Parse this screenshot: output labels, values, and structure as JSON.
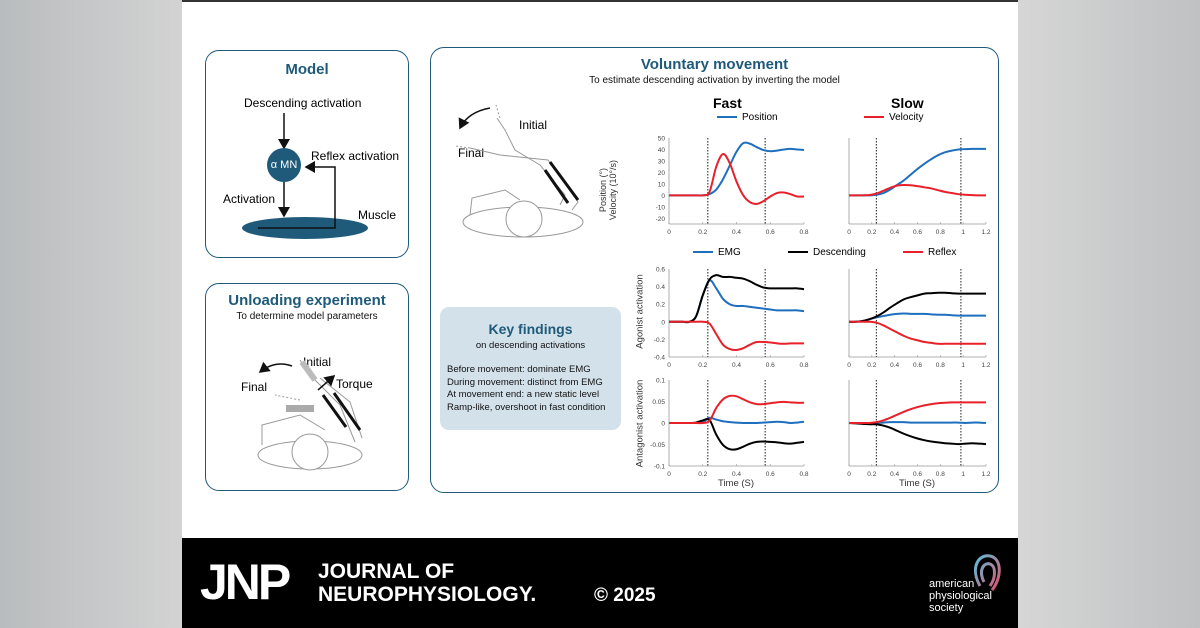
{
  "model": {
    "title": "Model",
    "descending": "Descending activation",
    "mn": "α MN",
    "reflex": "Reflex activation",
    "activation": "Activation",
    "muscle": "Muscle"
  },
  "unloading": {
    "title": "Unloading experiment",
    "subtitle": "To determine model parameters",
    "initial": "Initial",
    "final": "Final",
    "torque": "Torque"
  },
  "voluntary": {
    "title": "Voluntary movement",
    "subtitle": "To estimate descending activation by inverting the model",
    "initial": "Initial",
    "final": "Final",
    "fast": "Fast",
    "slow": "Slow"
  },
  "key_findings": {
    "title": "Key findings",
    "subtitle": "on descending activations",
    "items": [
      "Before movement: dominate EMG",
      "During movement: distinct from EMG",
      "At movement end: a new static level",
      "Ramp-like, overshoot in fast condition"
    ]
  },
  "footer": {
    "logo": "JNP",
    "journal_line1": "JOURNAL OF",
    "journal_line2": "NEUROPHYSIOLOGY.",
    "copyright": "© 2025",
    "society": [
      "american",
      "physiological",
      "society"
    ]
  },
  "colors": {
    "accent": "#1f5a7a",
    "position": "#1f6fbf",
    "velocity": "#e8202a",
    "emg": "#1f6fbf",
    "descending": "#000000",
    "reflex": "#e8202a",
    "findings_bg": "#d3e1ea"
  },
  "chart_data": [
    {
      "type": "line",
      "title": "Fast",
      "ylabel": "Position (°)\nVelocity (10°/s)",
      "xlabel": "",
      "xlim": [
        0,
        0.8
      ],
      "ylim": [
        -25,
        50
      ],
      "xticks": [
        "0",
        "0.2",
        "0.4",
        "0.6",
        "0.8"
      ],
      "xtick_values": [
        0,
        0.2,
        0.4,
        0.6,
        0.8
      ],
      "yticks": [
        "50",
        "40",
        "30",
        "20",
        "10",
        "0",
        "-10",
        "-20"
      ],
      "ytick_values": [
        50,
        40,
        30,
        20,
        10,
        0,
        -10,
        -20
      ],
      "vlines": [
        0.23,
        0.57
      ],
      "x": [
        0,
        0.04,
        0.08,
        0.12,
        0.16,
        0.2,
        0.24,
        0.28,
        0.32,
        0.36,
        0.4,
        0.44,
        0.48,
        0.52,
        0.56,
        0.6,
        0.64,
        0.68,
        0.72,
        0.76,
        0.8
      ],
      "series": [
        {
          "name": "Position",
          "color": "#1f6fbf",
          "values": [
            0,
            0,
            0,
            0,
            0,
            0,
            1,
            5,
            14,
            26,
            38,
            45.5,
            45,
            42,
            39.5,
            38.5,
            39,
            40,
            40.5,
            40,
            39.5
          ]
        },
        {
          "name": "Velocity",
          "color": "#e8202a",
          "values": [
            0,
            0,
            0,
            0,
            0,
            0,
            3,
            25,
            36,
            28,
            12,
            0,
            -6,
            -7.5,
            -5,
            -1,
            2,
            2.5,
            1,
            -1,
            -1
          ]
        }
      ]
    },
    {
      "type": "line",
      "title": "Slow",
      "xlim": [
        0,
        1.2
      ],
      "ylim": [
        -25,
        50
      ],
      "xticks": [
        "0",
        "0.2",
        "0.4",
        "0.6",
        "0.8",
        "1",
        "1.2"
      ],
      "xtick_values": [
        0,
        0.2,
        0.4,
        0.6,
        0.8,
        1,
        1.2
      ],
      "vlines": [
        0.24,
        0.98
      ],
      "x": [
        0,
        0.06,
        0.12,
        0.18,
        0.24,
        0.3,
        0.36,
        0.42,
        0.48,
        0.54,
        0.6,
        0.66,
        0.72,
        0.78,
        0.84,
        0.9,
        0.96,
        1.02,
        1.08,
        1.14,
        1.2
      ],
      "series": [
        {
          "name": "Position",
          "color": "#1f6fbf",
          "values": [
            0,
            0,
            0,
            0,
            0.5,
            2,
            5,
            9,
            13,
            18,
            23,
            27.5,
            31.5,
            35,
            37.5,
            39,
            40,
            40.3,
            40.5,
            40.5,
            40.5
          ]
        },
        {
          "name": "Velocity",
          "color": "#e8202a",
          "values": [
            0,
            0,
            0,
            0.3,
            1.5,
            4,
            6.5,
            8.5,
            9,
            8.8,
            8,
            7,
            6,
            4.5,
            3,
            2,
            1,
            0.5,
            0.2,
            0,
            0
          ]
        }
      ]
    },
    {
      "type": "line",
      "ylabel": "Agonist activation",
      "xlim": [
        0,
        0.8
      ],
      "ylim": [
        -0.4,
        0.6
      ],
      "xticks": [
        "0",
        "0.2",
        "0.4",
        "0.6",
        "0.8"
      ],
      "xtick_values": [
        0,
        0.2,
        0.4,
        0.6,
        0.8
      ],
      "yticks": [
        "0.6",
        "0.4",
        "0.2",
        "0",
        "-0.2",
        "-0.4"
      ],
      "ytick_values": [
        0.6,
        0.4,
        0.2,
        0,
        -0.2,
        -0.4
      ],
      "vlines": [
        0.23,
        0.57
      ],
      "x": [
        0,
        0.04,
        0.08,
        0.12,
        0.16,
        0.2,
        0.24,
        0.28,
        0.32,
        0.36,
        0.4,
        0.44,
        0.48,
        0.52,
        0.56,
        0.6,
        0.64,
        0.68,
        0.72,
        0.76,
        0.8
      ],
      "series": [
        {
          "name": "EMG",
          "color": "#1f6fbf",
          "values": [
            0,
            0,
            0,
            0,
            0.06,
            0.3,
            0.47,
            0.38,
            0.26,
            0.2,
            0.18,
            0.18,
            0.17,
            0.16,
            0.15,
            0.14,
            0.13,
            0.13,
            0.13,
            0.13,
            0.12
          ]
        },
        {
          "name": "Descending",
          "color": "#000000",
          "values": [
            0,
            0,
            0,
            0,
            0.06,
            0.3,
            0.48,
            0.53,
            0.51,
            0.51,
            0.5,
            0.49,
            0.46,
            0.42,
            0.39,
            0.38,
            0.38,
            0.38,
            0.38,
            0.38,
            0.37
          ]
        },
        {
          "name": "Reflex",
          "color": "#e8202a",
          "values": [
            0,
            0,
            0,
            0,
            0,
            0,
            -0.02,
            -0.14,
            -0.26,
            -0.31,
            -0.32,
            -0.3,
            -0.26,
            -0.23,
            -0.23,
            -0.235,
            -0.245,
            -0.25,
            -0.245,
            -0.245,
            -0.245
          ]
        }
      ]
    },
    {
      "type": "line",
      "xlim": [
        0,
        1.2
      ],
      "ylim": [
        -0.4,
        0.6
      ],
      "xticks": [
        "0",
        "0.2",
        "0.4",
        "0.6",
        "0.8",
        "1",
        "1.2"
      ],
      "xtick_values": [
        0,
        0.2,
        0.4,
        0.6,
        0.8,
        1,
        1.2
      ],
      "vlines": [
        0.24,
        0.98
      ],
      "x": [
        0,
        0.06,
        0.12,
        0.18,
        0.24,
        0.3,
        0.36,
        0.42,
        0.48,
        0.54,
        0.6,
        0.66,
        0.72,
        0.78,
        0.84,
        0.9,
        0.96,
        1.02,
        1.08,
        1.14,
        1.2
      ],
      "series": [
        {
          "name": "EMG",
          "color": "#1f6fbf",
          "values": [
            0,
            0,
            0.01,
            0.03,
            0.05,
            0.065,
            0.08,
            0.09,
            0.095,
            0.09,
            0.09,
            0.09,
            0.085,
            0.08,
            0.08,
            0.075,
            0.07,
            0.07,
            0.07,
            0.07,
            0.07
          ]
        },
        {
          "name": "Descending",
          "color": "#000000",
          "values": [
            0,
            0,
            0.01,
            0.03,
            0.06,
            0.105,
            0.16,
            0.21,
            0.255,
            0.28,
            0.3,
            0.32,
            0.325,
            0.33,
            0.33,
            0.325,
            0.32,
            0.32,
            0.32,
            0.32,
            0.32
          ]
        },
        {
          "name": "Reflex",
          "color": "#e8202a",
          "values": [
            0,
            0,
            0,
            0,
            -0.01,
            -0.04,
            -0.08,
            -0.12,
            -0.16,
            -0.19,
            -0.21,
            -0.23,
            -0.24,
            -0.25,
            -0.25,
            -0.25,
            -0.25,
            -0.25,
            -0.25,
            -0.25,
            -0.25
          ]
        }
      ]
    },
    {
      "type": "line",
      "ylabel": "Antagonist activation",
      "xlabel": "Time (S)",
      "xlim": [
        0,
        0.8
      ],
      "ylim": [
        -0.1,
        0.1
      ],
      "xticks": [
        "0",
        "0.2",
        "0.4",
        "0.6",
        "0.8"
      ],
      "xtick_values": [
        0,
        0.2,
        0.4,
        0.6,
        0.8
      ],
      "yticks": [
        "0.1",
        "0.05",
        "0",
        "-0.05",
        "-0.1"
      ],
      "ytick_values": [
        0.1,
        0.05,
        0,
        -0.05,
        -0.1
      ],
      "vlines": [
        0.23,
        0.57
      ],
      "x": [
        0,
        0.04,
        0.08,
        0.12,
        0.16,
        0.2,
        0.24,
        0.28,
        0.32,
        0.36,
        0.4,
        0.44,
        0.48,
        0.52,
        0.56,
        0.6,
        0.64,
        0.68,
        0.72,
        0.76,
        0.8
      ],
      "series": [
        {
          "name": "EMG",
          "color": "#1f6fbf",
          "values": [
            0,
            0,
            0,
            0,
            0,
            0.002,
            0.012,
            0.008,
            0.004,
            0.002,
            0.001,
            0,
            0,
            0,
            0.001,
            0.002,
            0.003,
            0.002,
            0,
            0.001,
            0.003
          ]
        },
        {
          "name": "Descending",
          "color": "#000000",
          "values": [
            0,
            0,
            0,
            0,
            0.001,
            0.006,
            0.007,
            -0.027,
            -0.051,
            -0.061,
            -0.061,
            -0.055,
            -0.048,
            -0.044,
            -0.043,
            -0.044,
            -0.045,
            -0.047,
            -0.048,
            -0.046,
            -0.044
          ]
        },
        {
          "name": "Reflex",
          "color": "#e8202a",
          "values": [
            0,
            0,
            0,
            0,
            0,
            0,
            0.005,
            0.035,
            0.055,
            0.063,
            0.062,
            0.055,
            0.048,
            0.044,
            0.044,
            0.046,
            0.048,
            0.049,
            0.048,
            0.047,
            0.047
          ]
        }
      ]
    },
    {
      "type": "line",
      "xlabel": "Time (S)",
      "xlim": [
        0,
        1.2
      ],
      "ylim": [
        -0.1,
        0.1
      ],
      "xticks": [
        "0",
        "0.2",
        "0.4",
        "0.6",
        "0.8",
        "1",
        "1.2"
      ],
      "xtick_values": [
        0,
        0.2,
        0.4,
        0.6,
        0.8,
        1,
        1.2
      ],
      "vlines": [
        0.24,
        0.98
      ],
      "x": [
        0,
        0.06,
        0.12,
        0.18,
        0.24,
        0.3,
        0.36,
        0.42,
        0.48,
        0.54,
        0.6,
        0.66,
        0.72,
        0.78,
        0.84,
        0.9,
        0.96,
        1.02,
        1.08,
        1.14,
        1.2
      ],
      "series": [
        {
          "name": "EMG",
          "color": "#1f6fbf",
          "values": [
            0,
            0,
            0,
            0,
            0,
            0.001,
            0.002,
            0.002,
            0.002,
            0.001,
            0.001,
            0.001,
            0.001,
            0.001,
            0.001,
            0.001,
            0.001,
            0,
            0.001,
            0.001,
            0
          ]
        },
        {
          "name": "Descending",
          "color": "#000000",
          "values": [
            0,
            -0.001,
            -0.002,
            -0.003,
            -0.003,
            -0.006,
            -0.011,
            -0.018,
            -0.025,
            -0.031,
            -0.036,
            -0.04,
            -0.043,
            -0.045,
            -0.047,
            -0.048,
            -0.049,
            -0.048,
            -0.047,
            -0.048,
            -0.049
          ]
        },
        {
          "name": "Reflex",
          "color": "#e8202a",
          "values": [
            0,
            0,
            0,
            0,
            0.002,
            0.006,
            0.012,
            0.019,
            0.026,
            0.032,
            0.037,
            0.041,
            0.044,
            0.046,
            0.047,
            0.048,
            0.048,
            0.048,
            0.048,
            0.048,
            0.048
          ]
        }
      ]
    }
  ],
  "legends": {
    "top": [
      "Position",
      "Velocity"
    ],
    "mid": [
      "EMG",
      "Descending",
      "Reflex"
    ]
  }
}
